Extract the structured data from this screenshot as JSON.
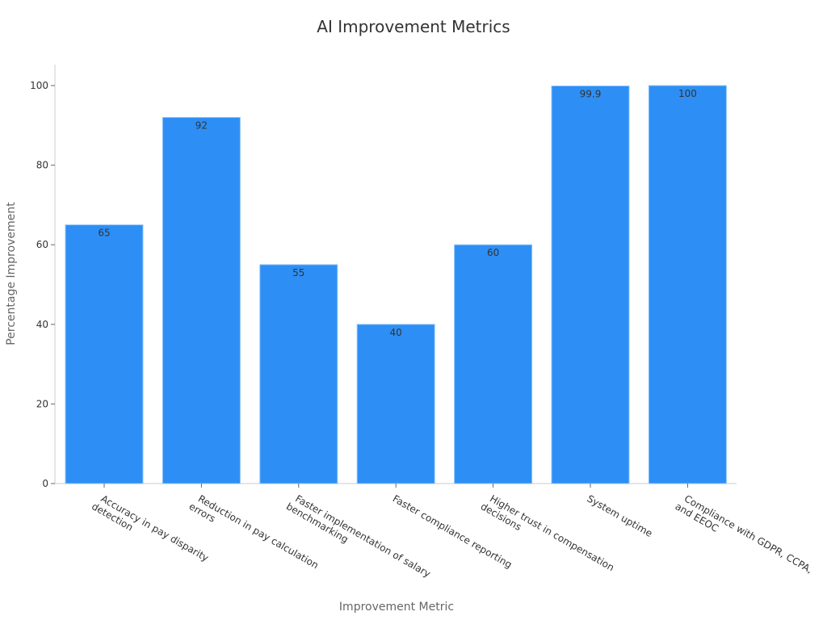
{
  "chart_data": {
    "type": "bar",
    "title": "AI Improvement Metrics",
    "xlabel": "Improvement Metric",
    "ylabel": "Percentage Improvement",
    "categories": [
      [
        "Accuracy in pay disparity",
        "detection"
      ],
      [
        "Reduction in pay calculation",
        "errors"
      ],
      [
        "Faster implementation of salary",
        "benchmarking"
      ],
      [
        "Faster compliance reporting"
      ],
      [
        "Higher trust in compensation",
        "decisions"
      ],
      [
        "System uptime"
      ],
      [
        "Compliance with GDPR, CCPA,",
        "and EEOC"
      ]
    ],
    "values": [
      65,
      92,
      55,
      40,
      60,
      99.9,
      100
    ],
    "value_labels": [
      "65",
      "92",
      "55",
      "40",
      "60",
      "99.9",
      "100"
    ],
    "yticks": [
      0,
      20,
      40,
      60,
      80,
      100
    ],
    "ylim": [
      0,
      105
    ],
    "bar_color": "#2d8ff5",
    "bar_edge_color": "#8cc4fa",
    "grid": false,
    "legend": "none"
  }
}
